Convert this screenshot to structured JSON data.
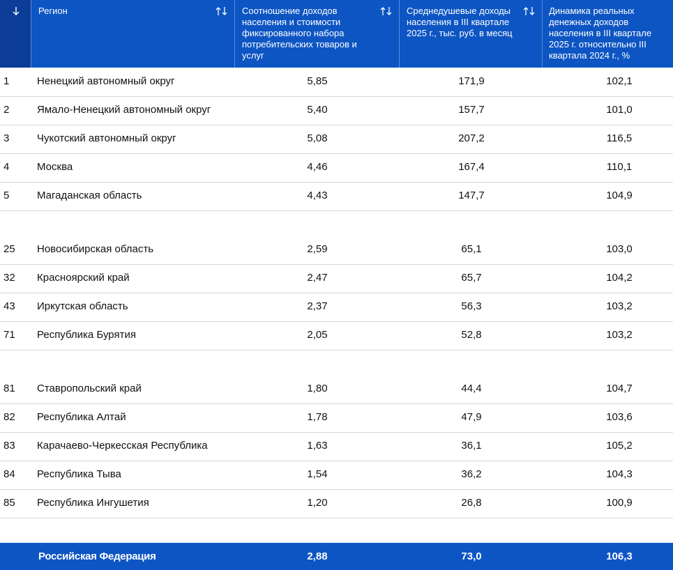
{
  "header": {
    "columns": [
      "Регион",
      "Соотношение доходов населения и стоимости фиксированного набора потребительских товаров и услуг",
      "Среднедушевые доходы населения в III квартале 2025 г., тыс. руб. в месяц",
      "Динамика реальных денежных доходов населения в III квартале 2025 г. относительно III квартала 2024 г., %"
    ]
  },
  "table": {
    "groups": [
      [
        [
          "1",
          "Ненецкий автономный округ",
          "5,85",
          "171,9",
          "102,1"
        ],
        [
          "2",
          "Ямало-Ненецкий автономный округ",
          "5,40",
          "157,7",
          "101,0"
        ],
        [
          "3",
          "Чукотский автономный округ",
          "5,08",
          "207,2",
          "116,5"
        ],
        [
          "4",
          "Москва",
          "4,46",
          "167,4",
          "110,1"
        ],
        [
          "5",
          "Магаданская область",
          "4,43",
          "147,7",
          "104,9"
        ]
      ],
      [
        [
          "25",
          "Новосибирская область",
          "2,59",
          "65,1",
          "103,0"
        ],
        [
          "32",
          "Красноярский край",
          "2,47",
          "65,7",
          "104,2"
        ],
        [
          "43",
          "Иркутская область",
          "2,37",
          "56,3",
          "103,2"
        ],
        [
          "71",
          "Республика Бурятия",
          "2,05",
          "52,8",
          "103,2"
        ]
      ],
      [
        [
          "81",
          "Ставропольский край",
          "1,80",
          "44,4",
          "104,7"
        ],
        [
          "82",
          "Республика Алтай",
          "1,78",
          "47,9",
          "103,6"
        ],
        [
          "83",
          "Карачаево-Черкесская Республика",
          "1,63",
          "36,1",
          "105,2"
        ],
        [
          "84",
          "Республика Тыва",
          "1,54",
          "36,2",
          "104,3"
        ],
        [
          "85",
          "Республика Ингушетия",
          "1,20",
          "26,8",
          "100,9"
        ]
      ]
    ],
    "total": [
      "Российская Федерация",
      "2,88",
      "73,0",
      "106,3"
    ]
  }
}
